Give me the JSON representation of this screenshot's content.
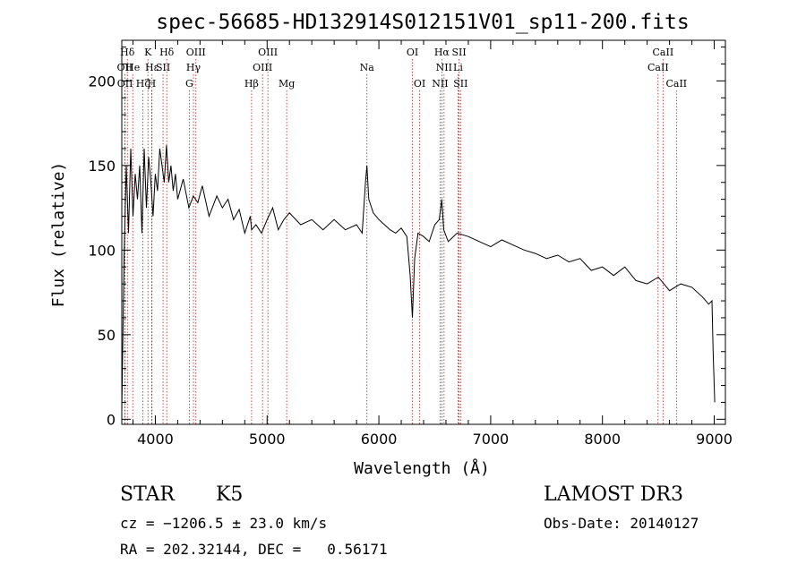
{
  "chart_data": {
    "type": "line",
    "title": "spec-56685-HD132914S012151V01_sp11-200.fits",
    "xlabel": "Wavelength (Å)",
    "ylabel": "Flux (relative)",
    "xlim": [
      3700,
      9100
    ],
    "ylim": [
      -3,
      224
    ],
    "xticks": [
      4000,
      5000,
      6000,
      7000,
      8000,
      9000
    ],
    "yticks": [
      0,
      50,
      100,
      150,
      200
    ],
    "series": [
      {
        "name": "spectrum",
        "x": [
          3700,
          3720,
          3740,
          3760,
          3780,
          3800,
          3820,
          3840,
          3860,
          3880,
          3900,
          3920,
          3940,
          3960,
          3980,
          4000,
          4020,
          4040,
          4060,
          4080,
          4100,
          4120,
          4140,
          4160,
          4180,
          4200,
          4250,
          4300,
          4340,
          4380,
          4420,
          4480,
          4550,
          4600,
          4650,
          4700,
          4750,
          4800,
          4850,
          4861,
          4900,
          4950,
          5000,
          5050,
          5100,
          5150,
          5200,
          5300,
          5400,
          5500,
          5600,
          5700,
          5800,
          5850,
          5880,
          5893,
          5910,
          5950,
          6000,
          6050,
          6100,
          6150,
          6200,
          6250,
          6280,
          6300,
          6320,
          6350,
          6400,
          6450,
          6500,
          6540,
          6563,
          6580,
          6620,
          6700,
          6800,
          6900,
          7000,
          7100,
          7200,
          7300,
          7400,
          7500,
          7600,
          7700,
          7800,
          7900,
          8000,
          8100,
          8200,
          8300,
          8400,
          8500,
          8600,
          8700,
          8800,
          8900,
          8950,
          8980,
          8990,
          9000,
          9005
        ],
        "y": [
          5,
          95,
          150,
          110,
          160,
          120,
          145,
          130,
          150,
          110,
          160,
          125,
          155,
          140,
          120,
          145,
          135,
          160,
          150,
          140,
          162,
          140,
          150,
          135,
          145,
          130,
          142,
          125,
          132,
          128,
          138,
          120,
          132,
          125,
          130,
          118,
          124,
          110,
          120,
          112,
          115,
          110,
          118,
          125,
          112,
          118,
          122,
          115,
          118,
          112,
          118,
          112,
          115,
          110,
          140,
          150,
          130,
          122,
          118,
          115,
          112,
          110,
          113,
          108,
          85,
          60,
          95,
          110,
          108,
          105,
          115,
          118,
          130,
          112,
          105,
          110,
          108,
          105,
          102,
          106,
          103,
          100,
          98,
          95,
          97,
          93,
          95,
          88,
          90,
          85,
          90,
          82,
          80,
          84,
          76,
          80,
          78,
          72,
          68,
          70,
          40,
          20,
          10
        ]
      }
    ],
    "lines": [
      {
        "label": "Hδ",
        "wl": 3750,
        "row": 1
      },
      {
        "label": "K",
        "wl": 3934,
        "row": 1
      },
      {
        "label": "Hδ",
        "wl": 4102,
        "row": 1
      },
      {
        "label": "OIII",
        "wl": 4363,
        "row": 1
      },
      {
        "label": "OIII",
        "wl": 5007,
        "row": 1
      },
      {
        "label": "OI",
        "wl": 6300,
        "row": 1
      },
      {
        "label": "Hα",
        "wl": 6563,
        "row": 1
      },
      {
        "label": "SII",
        "wl": 6717,
        "row": 1
      },
      {
        "label": "CaII",
        "wl": 8542,
        "row": 1
      },
      {
        "label": "OII",
        "wl": 3727,
        "row": 2
      },
      {
        "label": "He",
        "wl": 3798,
        "row": 2
      },
      {
        "label": "Hε",
        "wl": 3970,
        "row": 2
      },
      {
        "label": "SII",
        "wl": 4069,
        "row": 2
      },
      {
        "label": "Hγ",
        "wl": 4341,
        "row": 2
      },
      {
        "label": "OIII",
        "wl": 4959,
        "row": 2
      },
      {
        "label": "Na",
        "wl": 5893,
        "row": 2
      },
      {
        "label": "NII",
        "wl": 6583,
        "row": 2
      },
      {
        "label": "Li",
        "wl": 6708,
        "row": 2
      },
      {
        "label": "CaII",
        "wl": 8498,
        "row": 2
      },
      {
        "label": "OII",
        "wl": 3729,
        "row": 3
      },
      {
        "label": "Hζ",
        "wl": 3889,
        "row": 3
      },
      {
        "label": "H",
        "wl": 3968,
        "row": 3
      },
      {
        "label": "G",
        "wl": 4304,
        "row": 3
      },
      {
        "label": "Hβ",
        "wl": 4861,
        "row": 3
      },
      {
        "label": "Mg",
        "wl": 5175,
        "row": 3
      },
      {
        "label": "OI",
        "wl": 6364,
        "row": 3
      },
      {
        "label": "NII",
        "wl": 6548,
        "row": 3
      },
      {
        "label": "SII",
        "wl": 6731,
        "row": 3
      },
      {
        "label": "CaII",
        "wl": 8662,
        "row": 3
      }
    ]
  },
  "info": {
    "class": "STAR",
    "subclass": "K5",
    "survey": "LAMOST DR3",
    "cz": "cz = −1206.5 ± 23.0 km/s",
    "obs_date": "Obs-Date: 20140127",
    "coords": "RA = 202.32144, DEC =   0.56171"
  }
}
